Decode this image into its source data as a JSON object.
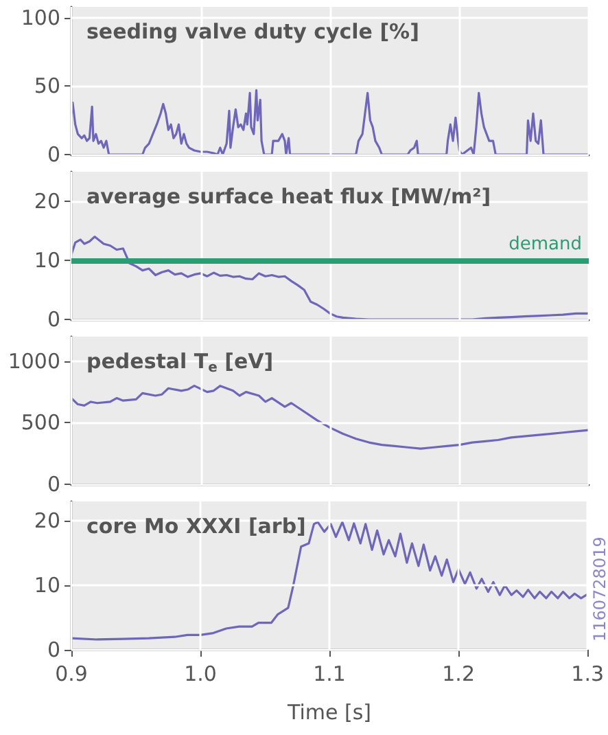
{
  "chart_data": [
    {
      "type": "line",
      "title": "seeding valve duty cycle [%]",
      "xlim": [
        0.9,
        1.3
      ],
      "xticks": [
        0.9,
        1,
        1.1,
        1.2,
        1.3
      ],
      "ylim": [
        0,
        108
      ],
      "yticks": [
        0,
        50,
        100
      ],
      "grid": true,
      "tick_labels": "y",
      "marker": "none",
      "line_style": "solid",
      "series": [
        {
          "color": "#6e66b8",
          "x": [
            0.9,
            0.901,
            0.903,
            0.905,
            0.908,
            0.91,
            0.912,
            0.914,
            0.916,
            0.917,
            0.919,
            0.921,
            0.923,
            0.925,
            0.927,
            0.929,
            0.955,
            0.957,
            0.96,
            0.963,
            0.966,
            0.969,
            0.971,
            0.973,
            0.975,
            0.977,
            0.979,
            0.981,
            0.983,
            0.985,
            0.987,
            0.989,
            0.991,
            0.995,
            1.0,
            1.005,
            1.01,
            1.013,
            1.015,
            1.017,
            1.02,
            1.022,
            1.023,
            1.025,
            1.027,
            1.029,
            1.031,
            1.033,
            1.035,
            1.036,
            1.038,
            1.039,
            1.041,
            1.043,
            1.044,
            1.046,
            1.047,
            1.049,
            1.055,
            1.056,
            1.06,
            1.063,
            1.065,
            1.066,
            1.068,
            1.069,
            1.12,
            1.122,
            1.125,
            1.127,
            1.129,
            1.131,
            1.133,
            1.135,
            1.138,
            1.14,
            1.16,
            1.162,
            1.165,
            1.167,
            1.168,
            1.19,
            1.191,
            1.193,
            1.195,
            1.197,
            1.199,
            1.2,
            1.202,
            1.209,
            1.211,
            1.213,
            1.215,
            1.217,
            1.219,
            1.221,
            1.223,
            1.226,
            1.228,
            1.252,
            1.253,
            1.255,
            1.257,
            1.259,
            1.261,
            1.263,
            1.265,
            1.3
          ],
          "values": [
            30,
            38,
            22,
            15,
            12,
            14,
            10,
            12,
            35,
            10,
            15,
            8,
            10,
            5,
            10,
            0,
            0,
            5,
            8,
            15,
            22,
            30,
            37,
            30,
            18,
            22,
            12,
            15,
            22,
            8,
            15,
            8,
            5,
            3,
            2,
            2,
            1,
            0,
            5,
            0,
            8,
            32,
            5,
            20,
            33,
            20,
            22,
            18,
            30,
            22,
            45,
            20,
            15,
            47,
            25,
            40,
            10,
            0,
            0,
            10,
            10,
            15,
            10,
            0,
            12,
            0,
            0,
            10,
            15,
            30,
            45,
            25,
            20,
            10,
            5,
            0,
            0,
            3,
            5,
            10,
            0,
            0,
            10,
            22,
            10,
            27,
            10,
            3,
            0,
            5,
            0,
            20,
            45,
            30,
            20,
            15,
            10,
            10,
            0,
            0,
            25,
            10,
            30,
            10,
            8,
            25,
            0,
            0
          ]
        }
      ]
    },
    {
      "type": "line",
      "title": "average surface heat flux [MW/m²]",
      "xlim": [
        0.9,
        1.3
      ],
      "xticks": [
        0.9,
        1,
        1.1,
        1.2,
        1.3
      ],
      "ylim": [
        0,
        25
      ],
      "yticks": [
        0,
        10,
        20
      ],
      "grid": true,
      "tick_labels": "y",
      "marker": "none",
      "line_style": "solid",
      "ref_lines": [
        {
          "axis": "y",
          "value": 10,
          "label": "demand",
          "color": "#2a9d74"
        }
      ],
      "series": [
        {
          "color": "#6e66b8",
          "x": [
            0.9,
            0.903,
            0.907,
            0.91,
            0.914,
            0.918,
            0.921,
            0.925,
            0.93,
            0.935,
            0.94,
            0.945,
            0.95,
            0.955,
            0.96,
            0.965,
            0.97,
            0.975,
            0.98,
            0.985,
            0.99,
            0.995,
            1.0,
            1.005,
            1.01,
            1.015,
            1.02,
            1.025,
            1.03,
            1.035,
            1.04,
            1.045,
            1.05,
            1.055,
            1.06,
            1.065,
            1.07,
            1.075,
            1.08,
            1.085,
            1.09,
            1.095,
            1.1,
            1.105,
            1.11,
            1.12,
            1.13,
            1.15,
            1.17,
            1.19,
            1.21,
            1.22,
            1.23,
            1.24,
            1.25,
            1.26,
            1.27,
            1.28,
            1.29,
            1.3
          ],
          "values": [
            11,
            13,
            13.5,
            12.8,
            13.2,
            14,
            13.5,
            12.8,
            12.5,
            11.8,
            12,
            9.5,
            9,
            8.3,
            8.6,
            7.5,
            8,
            8.3,
            7.6,
            7.8,
            7.2,
            7.6,
            7.8,
            7.3,
            7.9,
            7.4,
            7.5,
            7.2,
            7.3,
            6.9,
            6.8,
            7.8,
            7.3,
            7.5,
            7.2,
            7.3,
            6.5,
            5.8,
            5,
            3,
            2.5,
            1.8,
            1,
            0.5,
            0.3,
            0.1,
            0,
            0,
            0,
            0,
            0,
            0.2,
            0.3,
            0.4,
            0.5,
            0.6,
            0.7,
            0.8,
            1,
            1
          ]
        }
      ]
    },
    {
      "type": "line",
      "title": "pedestal T$_{e}$ [eV]",
      "xlim": [
        0.9,
        1.3
      ],
      "xticks": [
        0.9,
        1,
        1.1,
        1.2,
        1.3
      ],
      "ylim": [
        0,
        1200
      ],
      "yticks": [
        0,
        500,
        1000
      ],
      "grid": true,
      "tick_labels": "y",
      "marker": "none",
      "line_style": "solid",
      "series": [
        {
          "color": "#6e66b8",
          "x": [
            0.9,
            0.905,
            0.91,
            0.915,
            0.92,
            0.93,
            0.935,
            0.94,
            0.95,
            0.955,
            0.965,
            0.97,
            0.975,
            0.985,
            0.99,
            0.995,
            1.005,
            1.01,
            1.015,
            1.025,
            1.03,
            1.035,
            1.045,
            1.05,
            1.055,
            1.065,
            1.07,
            1.08,
            1.09,
            1.1,
            1.11,
            1.12,
            1.13,
            1.14,
            1.15,
            1.16,
            1.17,
            1.18,
            1.19,
            1.2,
            1.21,
            1.22,
            1.23,
            1.24,
            1.25,
            1.26,
            1.27,
            1.28,
            1.29,
            1.3
          ],
          "values": [
            700,
            650,
            640,
            670,
            660,
            670,
            700,
            680,
            690,
            740,
            720,
            730,
            780,
            760,
            770,
            800,
            750,
            760,
            800,
            760,
            720,
            750,
            720,
            670,
            700,
            630,
            660,
            590,
            520,
            460,
            410,
            370,
            340,
            320,
            310,
            300,
            290,
            300,
            310,
            320,
            340,
            350,
            360,
            380,
            390,
            400,
            410,
            420,
            430,
            440
          ]
        }
      ]
    },
    {
      "type": "line",
      "title": "core Mo XXXI [arb]",
      "xlabel": "Time [s]",
      "annotations": [
        "1160728019"
      ],
      "xlim": [
        0.9,
        1.3
      ],
      "xticks": [
        0.9,
        {
          "value": 1.0,
          "label": "1.0"
        },
        1.1,
        1.2,
        1.3
      ],
      "ylim": [
        0,
        23
      ],
      "yticks": [
        0,
        10,
        20
      ],
      "grid": true,
      "marker": "none",
      "line_style": "solid",
      "series": [
        {
          "color": "#6e66b8",
          "x": [
            0.9,
            0.92,
            0.94,
            0.96,
            0.98,
            0.99,
            1.0,
            1.01,
            1.02,
            1.03,
            1.04,
            1.045,
            1.055,
            1.06,
            1.068,
            1.072,
            1.078,
            1.084,
            1.088,
            1.091,
            1.096,
            1.101,
            1.105,
            1.11,
            1.115,
            1.119,
            1.124,
            1.128,
            1.133,
            1.137,
            1.142,
            1.146,
            1.151,
            1.155,
            1.16,
            1.164,
            1.169,
            1.173,
            1.178,
            1.182,
            1.187,
            1.191,
            1.196,
            1.2,
            1.205,
            1.209,
            1.214,
            1.218,
            1.223,
            1.227,
            1.232,
            1.236,
            1.241,
            1.245,
            1.25,
            1.254,
            1.259,
            1.263,
            1.268,
            1.272,
            1.277,
            1.281,
            1.286,
            1.29,
            1.295,
            1.3
          ],
          "values": [
            1.8,
            1.6,
            1.7,
            1.8,
            2,
            2.3,
            2.3,
            2.6,
            3.3,
            3.6,
            3.6,
            4.2,
            4.2,
            5.5,
            6.5,
            10,
            16,
            16.5,
            19.5,
            19.8,
            18.3,
            19.5,
            17.5,
            19.8,
            17,
            19.6,
            16.5,
            19.5,
            15.5,
            18.5,
            14.8,
            17,
            14.5,
            18,
            13.5,
            16.5,
            13,
            16.3,
            12.3,
            14.5,
            11.5,
            14,
            10.5,
            12.5,
            10.2,
            12,
            9.5,
            11,
            9,
            10.5,
            8.5,
            10,
            8.5,
            9.2,
            8.2,
            9.3,
            8,
            9,
            8,
            9,
            8,
            9,
            8,
            8.7,
            8,
            8.6
          ]
        }
      ]
    }
  ]
}
